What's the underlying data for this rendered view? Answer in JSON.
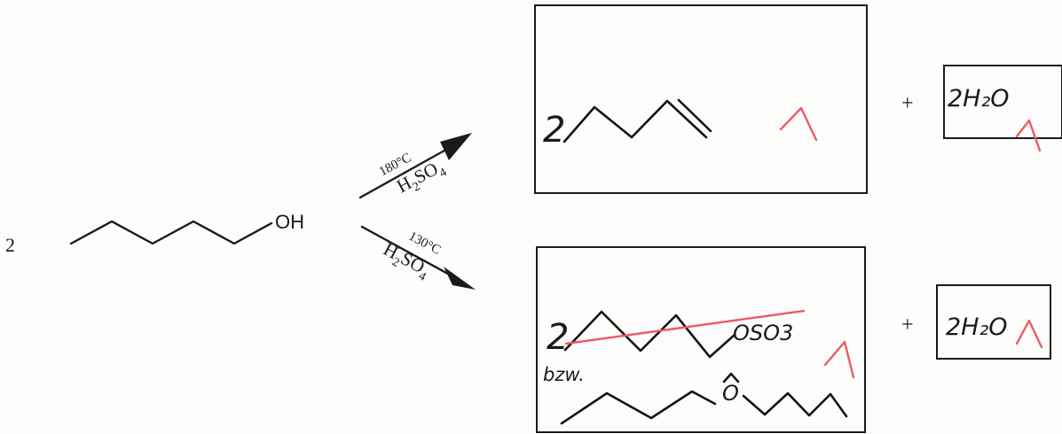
{
  "reactant": {
    "coefficient": "2",
    "group": "OH"
  },
  "upper_arrow": {
    "temperature": "180°C",
    "reagent": "H2SO4",
    "reagent_base": "H",
    "reagent_sub1": "2",
    "reagent_mid": "SO",
    "reagent_sub2": "4"
  },
  "lower_arrow": {
    "temperature": "130°C",
    "reagent": "H2SO4",
    "reagent_base": "H",
    "reagent_sub1": "2",
    "reagent_mid": "SO",
    "reagent_sub2": "4"
  },
  "upper_products": {
    "main_coefficient": "2",
    "plus": "+",
    "side_product": "2H₂O",
    "main_score": "1",
    "side_score": "1"
  },
  "lower_products": {
    "main_coefficient": "2",
    "crossed_group": "OSO3",
    "correction_note": "bzw.",
    "ether_oxygen": "O",
    "plus": "+",
    "side_product": "2H₂O",
    "main_score": "1",
    "side_score": "1"
  },
  "colors": {
    "ink": "#1a1a1a",
    "correction": "#ef5a62",
    "background": "#fdfdfc"
  }
}
